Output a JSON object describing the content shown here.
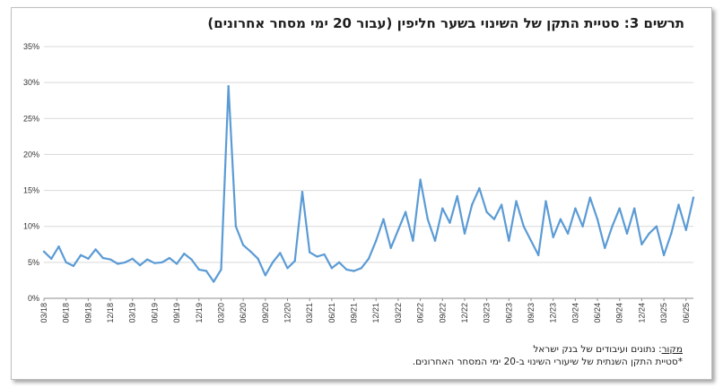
{
  "chart_data": {
    "type": "line",
    "title": "תרשים 3: סטיית התקן של השינוי בשער חליפין (עבור 20 ימי מסחר אחרונים)",
    "xlabel": "",
    "ylabel": "",
    "ylim": [
      0,
      35
    ],
    "yticks": [
      "0%",
      "5%",
      "10%",
      "15%",
      "20%",
      "25%",
      "30%",
      "35%"
    ],
    "xticks": [
      "03/18",
      "06/18",
      "09/18",
      "12/18",
      "03/19",
      "06/19",
      "09/19",
      "12/19",
      "03/20",
      "06/20",
      "09/20",
      "12/20",
      "03/21",
      "06/21",
      "09/21",
      "12/21",
      "03/22",
      "06/22",
      "09/22",
      "12/22",
      "03/23",
      "06/23",
      "09/23",
      "12/23",
      "03/24",
      "06/24",
      "09/24",
      "12/24",
      "03/25",
      "06/25"
    ],
    "grid": "horizontal",
    "line_color": "#5b9bd5",
    "x": [
      "2018-03",
      "2018-04",
      "2018-05",
      "2018-06",
      "2018-07",
      "2018-08",
      "2018-09",
      "2018-10",
      "2018-11",
      "2018-12",
      "2019-01",
      "2019-02",
      "2019-03",
      "2019-04",
      "2019-05",
      "2019-06",
      "2019-07",
      "2019-08",
      "2019-09",
      "2019-10",
      "2019-11",
      "2019-12",
      "2020-01",
      "2020-02",
      "2020-03",
      "2020-04",
      "2020-05",
      "2020-06",
      "2020-07",
      "2020-08",
      "2020-09",
      "2020-10",
      "2020-11",
      "2020-12",
      "2021-01",
      "2021-02",
      "2021-03",
      "2021-04",
      "2021-05",
      "2021-06",
      "2021-07",
      "2021-08",
      "2021-09",
      "2021-10",
      "2021-11",
      "2021-12",
      "2022-01",
      "2022-02",
      "2022-03",
      "2022-04",
      "2022-05",
      "2022-06",
      "2022-07",
      "2022-08",
      "2022-09",
      "2022-10",
      "2022-11",
      "2022-12",
      "2023-01",
      "2023-02",
      "2023-03",
      "2023-04",
      "2023-05",
      "2023-06",
      "2023-07",
      "2023-08",
      "2023-09",
      "2023-10",
      "2023-11",
      "2023-12",
      "2024-01",
      "2024-02",
      "2024-03",
      "2024-04",
      "2024-05",
      "2024-06",
      "2024-07",
      "2024-08",
      "2024-09",
      "2024-10",
      "2024-11",
      "2024-12",
      "2025-01",
      "2025-02",
      "2025-03",
      "2025-04",
      "2025-05",
      "2025-06",
      "2025-07"
    ],
    "series": [
      {
        "values": [
          6.5,
          5.5,
          7.2,
          5.0,
          4.5,
          6.0,
          5.5,
          6.8,
          5.6,
          5.4,
          4.8,
          5.0,
          5.5,
          4.6,
          5.4,
          4.9,
          5.0,
          5.6,
          4.8,
          6.2,
          5.4,
          4.0,
          3.8,
          2.3,
          4.0,
          29.5,
          10.0,
          7.4,
          6.5,
          5.5,
          3.2,
          5.0,
          6.3,
          4.2,
          5.2,
          14.8,
          6.4,
          5.8,
          6.1,
          4.2,
          5.0,
          4.0,
          3.8,
          4.2,
          5.5,
          8.0,
          11.0,
          7.0,
          9.5,
          12.0,
          8.0,
          16.5,
          11.0,
          8.0,
          12.5,
          10.5,
          14.2,
          9.0,
          13.0,
          15.3,
          12.0,
          11.0,
          13.0,
          8.0,
          13.5,
          10.0,
          8.0,
          6.0,
          13.5,
          8.5,
          11.0,
          9.0,
          12.5,
          10.0,
          14.0,
          11.0,
          7.0,
          10.0,
          12.5,
          9.0,
          12.5,
          7.5,
          9.0,
          10.0,
          6.0,
          9.0,
          13.0,
          9.5,
          14.0
        ]
      }
    ]
  },
  "source": {
    "label": "מקור",
    "text": ": נתונים ועיבודים של בנק ישראל",
    "note": "*סטיית התקן השנתית של שיעורי השינוי ב-20 ימי המסחר האחרונים."
  }
}
